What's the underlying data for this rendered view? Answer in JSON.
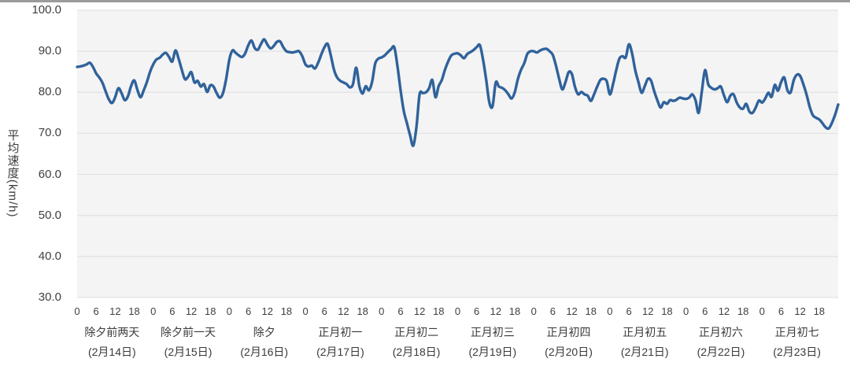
{
  "window": {
    "top_border_color": "#9b9b9b"
  },
  "chart_data": {
    "type": "line",
    "title": "",
    "xlabel": "",
    "ylabel": "平均速度(km/h)",
    "ylim": [
      30,
      100
    ],
    "y_tick_labels": [
      "100.0",
      "90.0",
      "80.0",
      "70.0",
      "60.0",
      "50.0",
      "40.0",
      "30.0"
    ],
    "grid": true,
    "legend_position": "none",
    "plot_bg_color": "#f4f4f4",
    "grid_color": "#e2e2e2",
    "line_color": "#30629b",
    "hour_tick_labels": [
      "0",
      "6",
      "12",
      "18"
    ],
    "hours_per_day": 24,
    "categories": [
      {
        "name": "除夕前两天",
        "date": "(2月14日)"
      },
      {
        "name": "除夕前一天",
        "date": "(2月15日)"
      },
      {
        "name": "除夕",
        "date": "(2月16日)"
      },
      {
        "name": "正月初一",
        "date": "(2月17日)"
      },
      {
        "name": "正月初二",
        "date": "(2月18日)"
      },
      {
        "name": "正月初三",
        "date": "(2月19日)"
      },
      {
        "name": "正月初四",
        "date": "(2月20日)"
      },
      {
        "name": "正月初五",
        "date": "(2月21日)"
      },
      {
        "name": "正月初六",
        "date": "(2月22日)"
      },
      {
        "name": "正月初七",
        "date": "(2月23日)"
      }
    ],
    "series": [
      {
        "name": "平均速度",
        "unit": "km/h",
        "values": [
          86.2,
          86.3,
          86.5,
          86.8,
          87.2,
          86.2,
          84.6,
          83.6,
          82.3,
          80.2,
          78.3,
          77.4,
          78.8,
          81.0,
          79.8,
          78.1,
          79.0,
          81.5,
          82.9,
          80.6,
          78.8,
          80.5,
          82.5,
          85.0,
          86.8,
          88.0,
          88.4,
          89.2,
          89.6,
          88.6,
          87.5,
          90.2,
          88.2,
          85.5,
          83.2,
          83.8,
          84.9,
          82.4,
          82.8,
          81.4,
          82.0,
          80.1,
          81.7,
          81.4,
          79.8,
          78.7,
          79.8,
          83.3,
          88.0,
          90.2,
          89.6,
          89.0,
          88.6,
          89.5,
          91.5,
          92.6,
          90.8,
          90.4,
          91.8,
          92.9,
          91.6,
          90.7,
          91.3,
          92.3,
          92.4,
          91.0,
          90.0,
          89.8,
          89.7,
          89.9,
          90.0,
          88.8,
          86.8,
          86.3,
          86.5,
          85.8,
          87.2,
          89.2,
          91.0,
          91.8,
          89.0,
          85.5,
          83.6,
          82.8,
          82.4,
          82.0,
          81.2,
          82.0,
          86.0,
          81.5,
          79.7,
          81.5,
          80.5,
          82.5,
          87.0,
          88.2,
          88.5,
          89.0,
          89.8,
          90.5,
          91.0,
          86.5,
          80.5,
          75.5,
          72.5,
          69.5,
          67.0,
          71.5,
          79.5,
          79.8,
          80.0,
          81.0,
          83.0,
          78.8,
          81.5,
          83.0,
          85.5,
          87.5,
          89.0,
          89.4,
          89.5,
          89.0,
          88.3,
          89.3,
          89.8,
          90.3,
          91.0,
          91.5,
          88.0,
          83.0,
          77.5,
          76.6,
          82.4,
          81.4,
          81.1,
          80.5,
          79.5,
          78.5,
          80.0,
          83.3,
          85.5,
          87.1,
          89.4,
          90.0,
          90.0,
          89.7,
          90.2,
          90.5,
          90.6,
          90.0,
          89.1,
          86.5,
          83.3,
          80.7,
          82.5,
          84.9,
          84.5,
          81.3,
          79.5,
          80.1,
          79.5,
          79.2,
          77.9,
          79.5,
          81.4,
          83.0,
          83.3,
          82.7,
          79.5,
          82.0,
          85.4,
          88.2,
          88.8,
          88.5,
          91.7,
          89.5,
          85.4,
          82.5,
          79.9,
          81.5,
          83.3,
          82.8,
          80.2,
          78.0,
          76.3,
          77.6,
          77.2,
          78.1,
          77.9,
          78.2,
          78.7,
          78.5,
          78.4,
          78.7,
          79.5,
          78.1,
          75.0,
          80.2,
          85.4,
          82.0,
          81.1,
          80.7,
          81.0,
          81.4,
          79.2,
          77.6,
          79.2,
          79.5,
          77.5,
          76.3,
          76.0,
          77.2,
          75.3,
          75.0,
          76.3,
          78.0,
          77.5,
          78.5,
          79.9,
          78.9,
          81.8,
          80.4,
          82.5,
          83.6,
          80.5,
          80.0,
          83.0,
          84.3,
          84.0,
          82.0,
          79.5,
          76.5,
          74.4,
          73.8,
          73.4,
          72.5,
          71.5,
          71.2,
          72.5,
          74.5,
          77.0
        ]
      }
    ]
  }
}
